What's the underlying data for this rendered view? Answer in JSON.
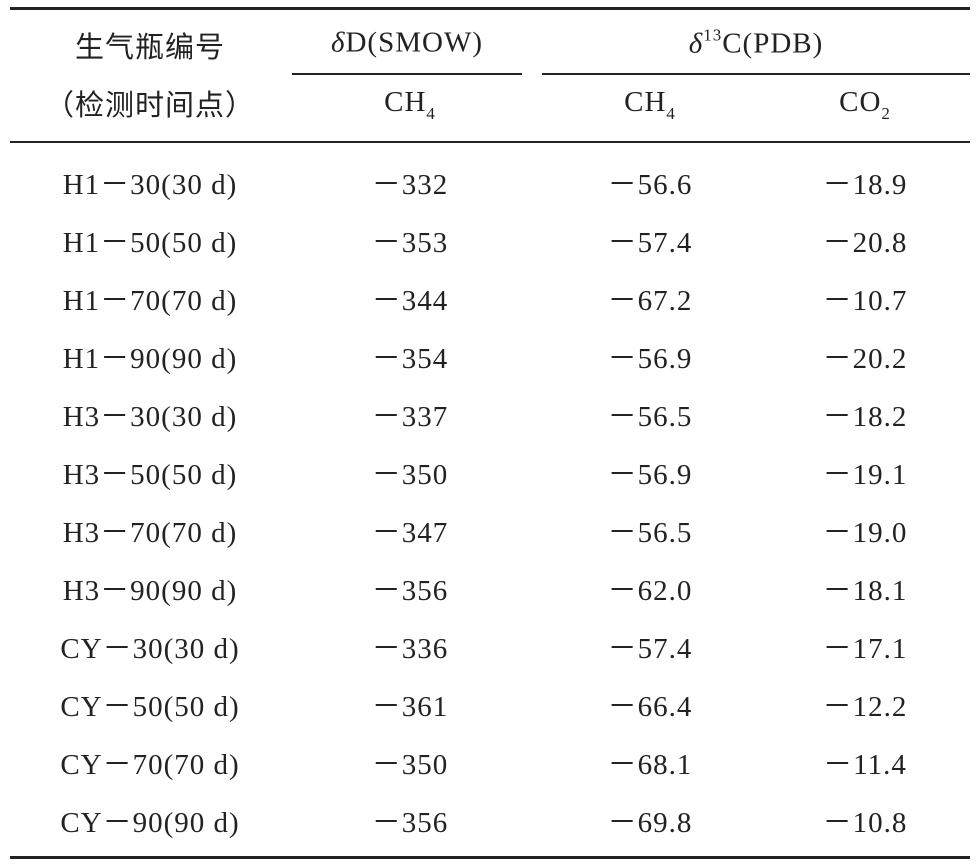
{
  "table": {
    "header": {
      "sample": [
        "生气瓶编号",
        "（检测时间点）"
      ],
      "dD": {
        "symbol": "δ",
        "text": "D(SMOW)"
      },
      "d13C": {
        "symbol": "δ",
        "sup": "13",
        "text": "C(PDB)"
      },
      "sub_columns": [
        {
          "base": "CH",
          "sub": "4"
        },
        {
          "base": "CH",
          "sub": "4"
        },
        {
          "base": "CO",
          "sub": "2"
        }
      ]
    },
    "rows": [
      [
        "H1－30(30 d)",
        "－332",
        "－56.6",
        "－18.9"
      ],
      [
        "H1－50(50 d)",
        "－353",
        "－57.4",
        "－20.8"
      ],
      [
        "H1－70(70 d)",
        "－344",
        "－67.2",
        "－10.7"
      ],
      [
        "H1－90(90 d)",
        "－354",
        "－56.9",
        "－20.2"
      ],
      [
        "H3－30(30 d)",
        "－337",
        "－56.5",
        "－18.2"
      ],
      [
        "H3－50(50 d)",
        "－350",
        "－56.9",
        "－19.1"
      ],
      [
        "H3－70(70 d)",
        "－347",
        "－56.5",
        "－19.0"
      ],
      [
        "H3－90(90 d)",
        "－356",
        "－62.0",
        "－18.1"
      ],
      [
        "CY－30(30 d)",
        "－336",
        "－57.4",
        "－17.1"
      ],
      [
        "CY－50(50 d)",
        "－361",
        "－66.4",
        "－12.2"
      ],
      [
        "CY－70(70 d)",
        "－350",
        "－68.1",
        "－11.4"
      ],
      [
        "CY－90(90 d)",
        "－356",
        "－69.8",
        "－10.8"
      ]
    ]
  }
}
